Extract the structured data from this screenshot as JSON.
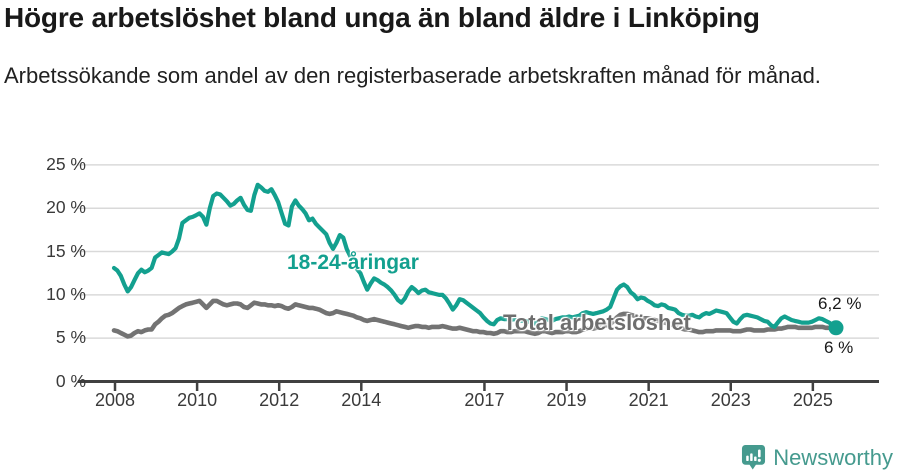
{
  "title": "Högre arbetslöshet bland unga än bland äldre i Linköping",
  "subtitle": "Arbetssökande som andel av den registerbaserade arbetskraften månad för månad.",
  "chart_data": {
    "type": "line",
    "x_unit": "month",
    "x_range": [
      "2008-01",
      "2025-08"
    ],
    "x_tick_values": [
      2008,
      2010,
      2012,
      2014,
      2017,
      2019,
      2021,
      2023,
      2025
    ],
    "x_tick_labels": [
      "2008",
      "2010",
      "2012",
      "2014",
      "2017",
      "2019",
      "2021",
      "2023",
      "2025"
    ],
    "y_tick_values": [
      0,
      5,
      10,
      15,
      20,
      25
    ],
    "y_tick_labels": [
      "0 %",
      "5 %",
      "10 %",
      "15 %",
      "20 %",
      "25 %"
    ],
    "ylim": [
      0,
      25
    ],
    "xlabel": "",
    "ylabel": "",
    "grid": "horizontal",
    "legend_position": "inline-labels",
    "series": [
      {
        "name": "18-24-åringar",
        "color": "#13a08f",
        "end_label": "6,2 %",
        "end_value": 6.2,
        "end_marker": true,
        "values": [
          13.1,
          12.8,
          12.2,
          11.2,
          10.4,
          10.9,
          11.7,
          12.5,
          12.9,
          12.6,
          12.8,
          13.1,
          14.3,
          14.6,
          14.9,
          14.8,
          14.7,
          15.0,
          15.4,
          16.5,
          18.3,
          18.6,
          18.9,
          19.0,
          19.2,
          19.4,
          19.0,
          18.1,
          20.0,
          21.4,
          21.7,
          21.6,
          21.2,
          20.8,
          20.3,
          20.5,
          20.9,
          21.2,
          20.4,
          19.8,
          19.7,
          21.5,
          22.7,
          22.4,
          22.0,
          21.9,
          22.2,
          21.5,
          20.7,
          19.4,
          18.2,
          18.0,
          20.2,
          20.9,
          20.3,
          19.9,
          19.4,
          18.6,
          18.8,
          18.2,
          17.8,
          17.4,
          17.0,
          16.0,
          15.3,
          16.0,
          16.9,
          16.6,
          15.3,
          14.5,
          13.8,
          13.0,
          12.5,
          11.5,
          10.6,
          11.3,
          11.9,
          11.7,
          11.4,
          11.2,
          10.9,
          10.5,
          10.0,
          9.4,
          9.1,
          9.6,
          10.4,
          10.9,
          10.6,
          10.2,
          10.5,
          10.6,
          10.3,
          10.2,
          10.1,
          10.0,
          10.0,
          9.6,
          9.0,
          8.3,
          8.8,
          9.5,
          9.4,
          9.1,
          8.8,
          8.5,
          8.2,
          7.9,
          7.4,
          7.0,
          6.7,
          6.6,
          7.1,
          7.3,
          7.2,
          7.2,
          7.1,
          7.2,
          7.1,
          7.0,
          7.0,
          6.9,
          6.8,
          6.7,
          7.0,
          7.3,
          7.2,
          7.1,
          7.0,
          7.2,
          7.3,
          7.4,
          7.4,
          7.5,
          7.4,
          7.5,
          7.6,
          7.9,
          8.0,
          7.9,
          7.8,
          7.9,
          8.0,
          8.1,
          8.3,
          8.6,
          9.6,
          10.6,
          11.0,
          11.2,
          10.9,
          10.3,
          10.0,
          9.5,
          9.7,
          9.6,
          9.3,
          9.1,
          8.8,
          8.7,
          8.9,
          8.8,
          8.5,
          8.4,
          8.3,
          7.9,
          7.7,
          7.6,
          7.6,
          7.7,
          7.5,
          7.4,
          7.7,
          7.9,
          7.8,
          8.0,
          8.2,
          8.1,
          8.0,
          7.9,
          7.4,
          6.9,
          6.7,
          7.2,
          7.6,
          7.7,
          7.6,
          7.5,
          7.4,
          7.2,
          7.0,
          6.9,
          6.5,
          6.3,
          6.8,
          7.3,
          7.5,
          7.3,
          7.1,
          7.0,
          6.9,
          6.8,
          6.8,
          6.8,
          6.9,
          7.1,
          7.3,
          7.2,
          7.0,
          6.8,
          6.5,
          6.2
        ]
      },
      {
        "name": "Total arbetslöshet",
        "color": "#737373",
        "end_label": "6 %",
        "end_value": 6.0,
        "end_marker": false,
        "values": [
          5.9,
          5.8,
          5.6,
          5.4,
          5.2,
          5.3,
          5.6,
          5.8,
          5.7,
          5.9,
          6.0,
          6.0,
          6.6,
          6.9,
          7.3,
          7.6,
          7.7,
          7.9,
          8.2,
          8.5,
          8.7,
          8.9,
          9.0,
          9.1,
          9.2,
          9.3,
          8.9,
          8.5,
          8.9,
          9.3,
          9.3,
          9.1,
          8.9,
          8.8,
          8.9,
          9.0,
          9.0,
          8.9,
          8.6,
          8.5,
          8.8,
          9.1,
          9.0,
          8.9,
          8.9,
          8.8,
          8.8,
          8.7,
          8.8,
          8.7,
          8.5,
          8.4,
          8.6,
          8.9,
          8.8,
          8.7,
          8.6,
          8.5,
          8.5,
          8.4,
          8.3,
          8.1,
          7.9,
          7.8,
          7.9,
          8.1,
          8.0,
          7.9,
          7.8,
          7.7,
          7.6,
          7.4,
          7.3,
          7.1,
          7.0,
          7.1,
          7.2,
          7.1,
          7.0,
          6.9,
          6.8,
          6.7,
          6.6,
          6.5,
          6.4,
          6.3,
          6.2,
          6.3,
          6.4,
          6.4,
          6.3,
          6.3,
          6.2,
          6.3,
          6.3,
          6.3,
          6.4,
          6.3,
          6.2,
          6.1,
          6.1,
          6.2,
          6.1,
          6.0,
          5.9,
          5.8,
          5.8,
          5.7,
          5.7,
          5.6,
          5.6,
          5.5,
          5.6,
          5.8,
          5.8,
          5.7,
          5.7,
          5.8,
          5.8,
          5.8,
          5.8,
          5.7,
          5.6,
          5.5,
          5.6,
          5.8,
          5.8,
          5.7,
          5.6,
          5.7,
          5.7,
          5.7,
          5.8,
          5.8,
          5.7,
          5.7,
          5.8,
          6.0,
          6.1,
          6.1,
          6.1,
          6.2,
          6.3,
          6.4,
          6.5,
          6.6,
          7.0,
          7.4,
          7.7,
          7.8,
          7.8,
          7.7,
          7.6,
          7.4,
          7.3,
          7.3,
          7.3,
          7.2,
          7.1,
          7.0,
          6.9,
          6.8,
          6.7,
          6.6,
          6.4,
          6.2,
          6.1,
          6.0,
          6.0,
          5.9,
          5.8,
          5.7,
          5.7,
          5.8,
          5.8,
          5.8,
          5.9,
          5.9,
          5.9,
          5.9,
          5.9,
          5.8,
          5.8,
          5.8,
          5.9,
          6.0,
          6.0,
          5.9,
          5.9,
          5.9,
          5.9,
          6.0,
          6.0,
          6.0,
          6.1,
          6.1,
          6.2,
          6.3,
          6.3,
          6.3,
          6.2,
          6.2,
          6.2,
          6.2,
          6.2,
          6.3,
          6.3,
          6.3,
          6.2,
          6.2,
          6.1,
          6.0
        ]
      }
    ]
  },
  "branding": {
    "logo_text": "Newsworthy",
    "logo_color": "#459a8e",
    "logo_icon": "bar-chart-speech-bubble-icon"
  }
}
